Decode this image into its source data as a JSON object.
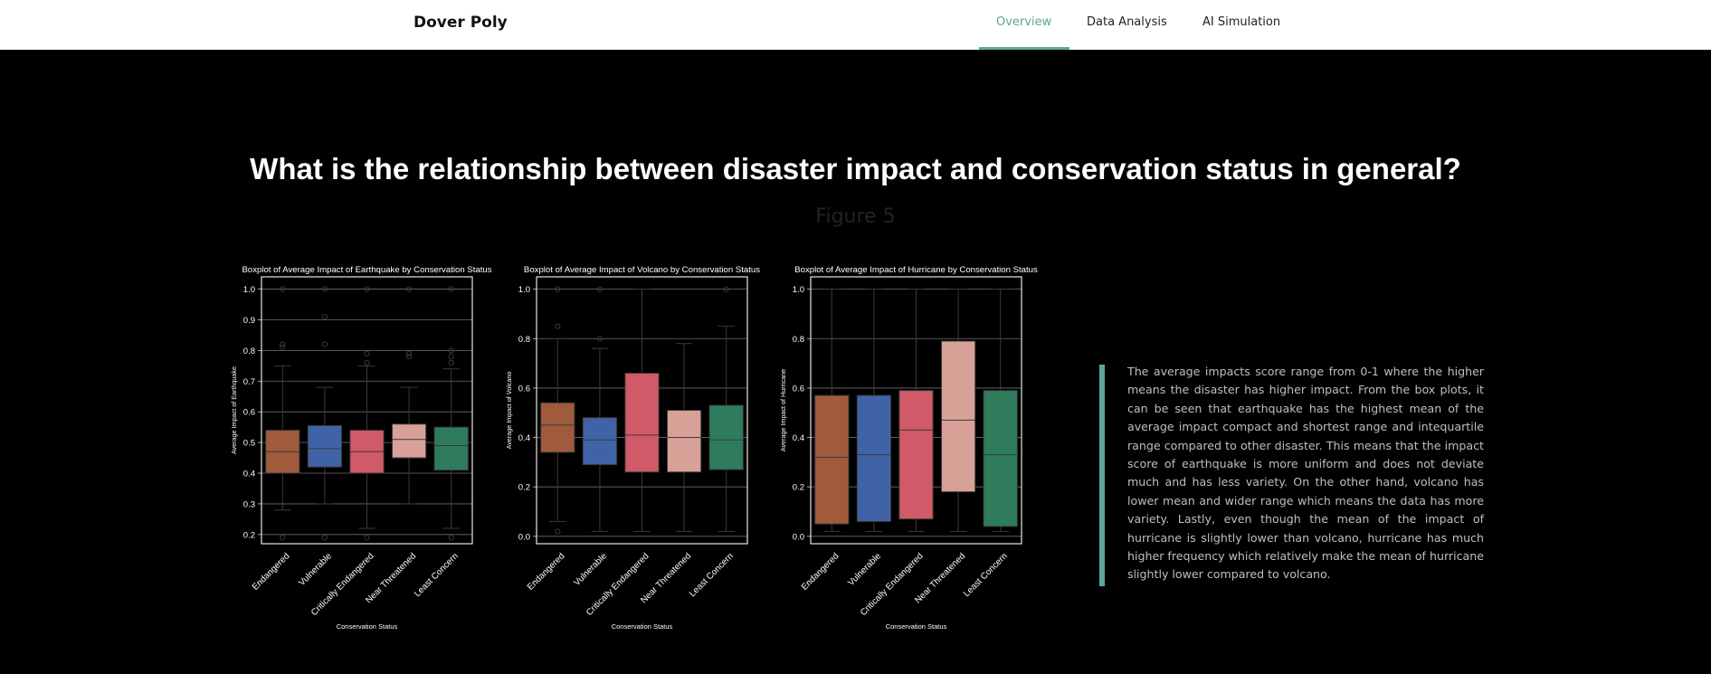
{
  "nav": {
    "brand": "Dover Poly",
    "items": [
      {
        "label": "Overview",
        "active": true
      },
      {
        "label": "Data Analysis",
        "active": false
      },
      {
        "label": "AI Simulation",
        "active": false
      }
    ],
    "accent": "#5fa59d"
  },
  "headline": "What is the relationship between disaster impact and conservation status in general?",
  "figure_label": "Figure 5",
  "description": "The average impacts score range from 0-1 where the higher means the disaster has higher impact. From the box plots, it can be seen that earthquake has the highest mean of the average impact compact and shortest range and intequartile range compared to other disaster. This means that the impact score of earthquake is more uniform and does not deviate much and has less variety. On the other hand, volcano has lower mean and wider range which means the data has more variety. Lastly, even though the mean of the impact of hurricane is slightly lower than volcano, hurricane has much higher frequency which relatively make the mean of hurricane slightly lower compared to volcano.",
  "chart_data": [
    {
      "type": "box",
      "title": "Boxplot of Average Impact of Earthquake by Conservation Status",
      "xlabel": "Conservation Status",
      "ylabel": "Average Impact of Earthquake",
      "categories": [
        "Endangered",
        "Vulnerable",
        "Critically Endangered",
        "Near Threatened",
        "Least Concern"
      ],
      "colors": [
        "#a05a3c",
        "#3f63a6",
        "#d05a67",
        "#d7a197",
        "#2e7c5c"
      ],
      "ylim": [
        0.17,
        1.04
      ],
      "yticks": [
        0.2,
        0.3,
        0.4,
        0.5,
        0.6,
        0.7,
        0.8,
        0.9,
        1.0
      ],
      "boxes": [
        {
          "whislo": 0.28,
          "q1": 0.4,
          "med": 0.47,
          "q3": 0.54,
          "whishi": 0.75,
          "fliers": [
            0.19,
            0.81,
            0.82,
            1.0
          ]
        },
        {
          "whislo": 0.3,
          "q1": 0.42,
          "med": 0.48,
          "q3": 0.555,
          "whishi": 0.68,
          "fliers": [
            0.19,
            0.82,
            0.91,
            1.0
          ]
        },
        {
          "whislo": 0.22,
          "q1": 0.4,
          "med": 0.47,
          "q3": 0.54,
          "whishi": 0.75,
          "fliers": [
            0.19,
            0.76,
            0.79,
            1.0
          ]
        },
        {
          "whislo": 0.3,
          "q1": 0.45,
          "med": 0.51,
          "q3": 0.56,
          "whishi": 0.68,
          "fliers": [
            0.78,
            0.79,
            1.0
          ]
        },
        {
          "whislo": 0.22,
          "q1": 0.41,
          "med": 0.49,
          "q3": 0.55,
          "whishi": 0.74,
          "fliers": [
            0.19,
            0.76,
            0.78,
            0.8,
            1.0
          ]
        }
      ]
    },
    {
      "type": "box",
      "title": "Boxplot of Average Impact of Volcano by Conservation Status",
      "xlabel": "Conservation Status",
      "ylabel": "Average Impact of Volcano",
      "categories": [
        "Endangered",
        "Vulnerable",
        "Critically Endangered",
        "Near Threatened",
        "Least Concern"
      ],
      "colors": [
        "#a05a3c",
        "#3f63a6",
        "#d05a67",
        "#d7a197",
        "#2e7c5c"
      ],
      "ylim": [
        -0.03,
        1.05
      ],
      "yticks": [
        0.0,
        0.2,
        0.4,
        0.6,
        0.8,
        1.0
      ],
      "boxes": [
        {
          "whislo": 0.06,
          "q1": 0.34,
          "med": 0.45,
          "q3": 0.54,
          "whishi": 0.8,
          "fliers": [
            0.02,
            0.85,
            1.0
          ]
        },
        {
          "whislo": 0.02,
          "q1": 0.29,
          "med": 0.39,
          "q3": 0.48,
          "whishi": 0.76,
          "fliers": [
            0.8,
            1.0
          ]
        },
        {
          "whislo": 0.02,
          "q1": 0.26,
          "med": 0.41,
          "q3": 0.66,
          "whishi": 1.0,
          "fliers": []
        },
        {
          "whislo": 0.02,
          "q1": 0.26,
          "med": 0.4,
          "q3": 0.51,
          "whishi": 0.78,
          "fliers": []
        },
        {
          "whislo": 0.02,
          "q1": 0.27,
          "med": 0.39,
          "q3": 0.53,
          "whishi": 0.85,
          "fliers": [
            1.0
          ]
        }
      ]
    },
    {
      "type": "box",
      "title": "Boxplot of Average Impact of Hurricane by Conservation Status",
      "xlabel": "Conservation Status",
      "ylabel": "Average Impact of Hurricane",
      "categories": [
        "Endangered",
        "Vulnerable",
        "Critically Endangered",
        "Near Threatened",
        "Least Concern"
      ],
      "colors": [
        "#a05a3c",
        "#3f63a6",
        "#d05a67",
        "#d7a197",
        "#2e7c5c"
      ],
      "ylim": [
        -0.03,
        1.05
      ],
      "yticks": [
        0.0,
        0.2,
        0.4,
        0.6,
        0.8,
        1.0
      ],
      "boxes": [
        {
          "whislo": 0.02,
          "q1": 0.05,
          "med": 0.32,
          "q3": 0.57,
          "whishi": 1.0,
          "fliers": []
        },
        {
          "whislo": 0.02,
          "q1": 0.06,
          "med": 0.33,
          "q3": 0.57,
          "whishi": 1.0,
          "fliers": []
        },
        {
          "whislo": 0.02,
          "q1": 0.07,
          "med": 0.43,
          "q3": 0.59,
          "whishi": 1.0,
          "fliers": []
        },
        {
          "whislo": 0.02,
          "q1": 0.18,
          "med": 0.47,
          "q3": 0.79,
          "whishi": 1.0,
          "fliers": []
        },
        {
          "whislo": 0.02,
          "q1": 0.04,
          "med": 0.33,
          "q3": 0.59,
          "whishi": 1.0,
          "fliers": []
        }
      ]
    }
  ]
}
